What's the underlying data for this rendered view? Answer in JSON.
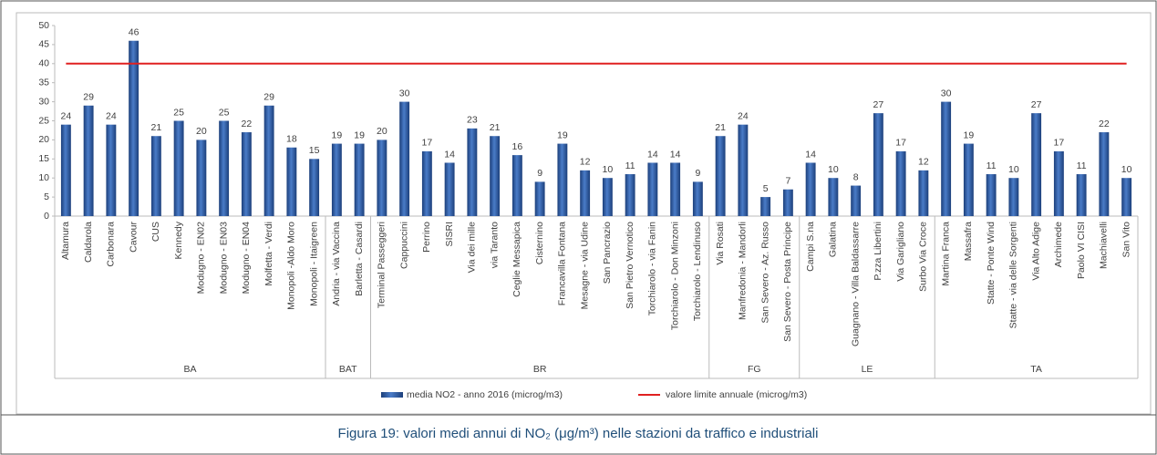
{
  "chart_data": {
    "type": "bar",
    "caption": "Figura 19: valori medi annui di NO₂ (μg/m³) nelle stazioni da traffico e industriali",
    "groups": [
      "BA",
      "BAT",
      "BR",
      "FG",
      "LE",
      "TA"
    ],
    "categories": [
      [
        "Altamura",
        "Caldarola",
        "Carbonara",
        "Cavour",
        "CUS",
        "Kennedy",
        "Modugno - EN02",
        "Modugno - EN03",
        "Modugno - EN04",
        "Molfetta - Verdi",
        "Monopoli -Aldo Moro",
        "Monopoli - Itaigreen"
      ],
      [
        "Andria - via Vaccina",
        "Barletta - Casardi"
      ],
      [
        "Terminal Passeggeri",
        "Cappuccini",
        "Perrino",
        "SISRI",
        "Via dei mille",
        "via Taranto",
        "Ceglie Messapica",
        "Cisternino",
        "Francavilla Fontana",
        "Mesagne - via Udine",
        "San Pancrazio",
        "San Pietro Vernotico",
        "Torchiarolo - via Fanin",
        "Torchiarolo - Don Minzoni",
        "Torchiarolo - Lendinuso"
      ],
      [
        "Via Rosati",
        "Manfredonia - Mandorli",
        "San Severo - Az. Russo",
        "San Severo - Posta Principe"
      ],
      [
        "Campi S.na",
        "Galatina",
        "Guagnano - Villa Baldassarre",
        "P.zza Libertini",
        "Via Garigliano",
        "Surbo Via Croce"
      ],
      [
        "Martina Franca",
        "Massafra",
        "Statte - Ponte Wind",
        "Statte - via delle Sorgenti",
        "Via Alto Adige",
        "Archimede",
        "Paolo VI CISI",
        "Machiavelli",
        "San Vito"
      ]
    ],
    "series": [
      {
        "name": "media NO2 - anno 2016 (microg/m3)",
        "color": "#2f5ea6",
        "values": [
          [
            24,
            29,
            24,
            46,
            21,
            25,
            20,
            25,
            22,
            29,
            18,
            15
          ],
          [
            19,
            19
          ],
          [
            20,
            30,
            17,
            14,
            23,
            21,
            16,
            9,
            19,
            12,
            10,
            11,
            14,
            14,
            9
          ],
          [
            21,
            24,
            5,
            7
          ],
          [
            14,
            10,
            8,
            27,
            17,
            12
          ],
          [
            30,
            19,
            11,
            10,
            27,
            17,
            11,
            22,
            10
          ]
        ]
      },
      {
        "name": "valore limite annuale (microg/m3)",
        "color": "#e02020",
        "value": 40
      }
    ],
    "ylim": [
      0,
      50
    ],
    "yticks": [
      0,
      5,
      10,
      15,
      20,
      25,
      30,
      35,
      40,
      45,
      50
    ]
  }
}
